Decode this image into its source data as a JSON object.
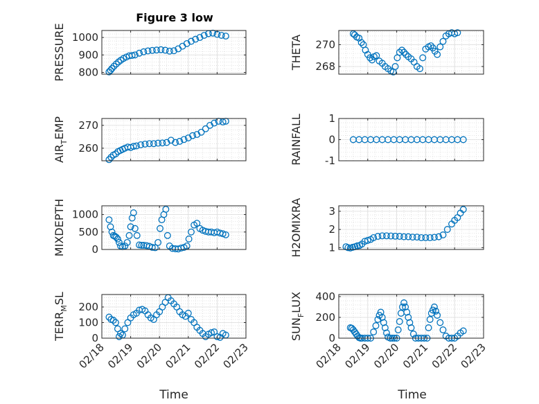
{
  "figure": {
    "title": "Figure 3 low",
    "marker_color": "#0072BD"
  },
  "chart_data": [
    {
      "type": "scatter",
      "ylabel": "PRESSURE",
      "title": "Figure 3 low",
      "xlim": [
        0,
        5
      ],
      "ylim": [
        790,
        1040
      ],
      "yticks": [
        800,
        900,
        1000
      ],
      "grid": true,
      "x": [
        0.25,
        0.3,
        0.35,
        0.42,
        0.5,
        0.58,
        0.66,
        0.75,
        0.85,
        0.95,
        1.05,
        1.15,
        1.3,
        1.45,
        1.6,
        1.75,
        1.9,
        2.05,
        2.2,
        2.35,
        2.5,
        2.65,
        2.8,
        2.95,
        3.1,
        3.25,
        3.4,
        3.55,
        3.7,
        3.85,
        4.0,
        4.15,
        4.3
      ],
      "y": [
        803,
        812,
        822,
        835,
        848,
        860,
        870,
        880,
        888,
        895,
        897,
        900,
        910,
        918,
        923,
        926,
        928,
        930,
        927,
        922,
        924,
        935,
        950,
        965,
        978,
        990,
        1000,
        1012,
        1022,
        1025,
        1018,
        1012,
        1008
      ]
    },
    {
      "type": "scatter",
      "ylabel": "THETA",
      "xlim": [
        0,
        5
      ],
      "ylim": [
        267.3,
        271.3
      ],
      "yticks": [
        268,
        270
      ],
      "grid": true,
      "x": [
        0.5,
        0.55,
        0.62,
        0.7,
        0.78,
        0.85,
        0.92,
        1.0,
        1.08,
        1.15,
        1.22,
        1.3,
        1.4,
        1.5,
        1.6,
        1.7,
        1.8,
        1.88,
        1.95,
        2.02,
        2.1,
        2.18,
        2.25,
        2.32,
        2.4,
        2.5,
        2.6,
        2.7,
        2.8,
        2.9,
        3.0,
        3.1,
        3.18,
        3.25,
        3.32,
        3.4,
        3.5,
        3.6,
        3.7,
        3.8,
        3.9,
        4.0,
        4.1
      ],
      "y": [
        271.0,
        270.9,
        270.7,
        270.6,
        270.2,
        270.0,
        269.5,
        269.1,
        268.8,
        268.6,
        268.9,
        269.0,
        268.5,
        268.3,
        268.0,
        267.8,
        267.6,
        267.5,
        268.0,
        268.8,
        269.3,
        269.5,
        269.3,
        269.1,
        268.9,
        268.7,
        268.4,
        268.0,
        267.8,
        268.8,
        269.6,
        269.8,
        269.9,
        269.7,
        269.4,
        269.1,
        269.8,
        270.3,
        270.8,
        271.0,
        271.1,
        271.0,
        271.1
      ]
    },
    {
      "type": "scatter",
      "ylabel": "AIR_TEMP",
      "xlim": [
        0,
        5
      ],
      "ylim": [
        254.5,
        273
      ],
      "yticks": [
        260,
        270
      ],
      "grid": true,
      "x": [
        0.25,
        0.32,
        0.4,
        0.48,
        0.56,
        0.64,
        0.72,
        0.8,
        0.9,
        1.0,
        1.1,
        1.2,
        1.35,
        1.5,
        1.65,
        1.8,
        1.95,
        2.1,
        2.25,
        2.4,
        2.55,
        2.7,
        2.85,
        3.0,
        3.15,
        3.3,
        3.45,
        3.6,
        3.75,
        3.9,
        4.05,
        4.2,
        4.3
      ],
      "y": [
        255,
        256,
        257,
        257.5,
        258.5,
        259,
        259.5,
        260,
        260.5,
        260.3,
        260.8,
        261,
        261.5,
        261.8,
        262,
        262,
        262.2,
        262.3,
        262.5,
        263.5,
        262.5,
        263,
        263.8,
        264.5,
        265.5,
        266,
        267,
        268.5,
        270,
        271,
        271.8,
        271.5,
        271.8
      ]
    },
    {
      "type": "scatter",
      "ylabel": "RAINFALL",
      "xlim": [
        0,
        5
      ],
      "ylim": [
        -1,
        1
      ],
      "yticks": [
        -1,
        0,
        1
      ],
      "grid": true,
      "x": [
        0.5,
        0.7,
        0.9,
        1.1,
        1.3,
        1.5,
        1.7,
        1.9,
        2.1,
        2.3,
        2.5,
        2.7,
        2.9,
        3.1,
        3.3,
        3.5,
        3.7,
        3.9,
        4.1,
        4.3
      ],
      "y": [
        0,
        0,
        0,
        0,
        0,
        0,
        0,
        0,
        0,
        0,
        0,
        0,
        0,
        0,
        0,
        0,
        0,
        0,
        0,
        0
      ]
    },
    {
      "type": "scatter",
      "ylabel": "MIXDEPTH",
      "xlim": [
        0,
        5
      ],
      "ylim": [
        0,
        1250
      ],
      "yticks": [
        0,
        500,
        1000
      ],
      "grid": true,
      "x": [
        0.25,
        0.3,
        0.35,
        0.4,
        0.45,
        0.5,
        0.55,
        0.6,
        0.65,
        0.72,
        0.8,
        0.88,
        0.95,
        1.0,
        1.05,
        1.1,
        1.15,
        1.22,
        1.3,
        1.38,
        1.45,
        1.55,
        1.65,
        1.75,
        1.85,
        1.95,
        2.02,
        2.08,
        2.15,
        2.22,
        2.28,
        2.35,
        2.45,
        2.55,
        2.65,
        2.75,
        2.85,
        2.95,
        3.02,
        3.1,
        3.2,
        3.3,
        3.4,
        3.5,
        3.6,
        3.7,
        3.8,
        3.9,
        4.0,
        4.1,
        4.2,
        4.3
      ],
      "y": [
        850,
        650,
        500,
        400,
        380,
        350,
        300,
        200,
        100,
        80,
        100,
        200,
        400,
        650,
        900,
        1050,
        600,
        400,
        130,
        120,
        120,
        110,
        90,
        60,
        50,
        200,
        600,
        850,
        1000,
        1150,
        400,
        100,
        30,
        20,
        15,
        40,
        60,
        100,
        300,
        500,
        700,
        750,
        600,
        550,
        520,
        500,
        500,
        480,
        500,
        470,
        450,
        420
      ]
    },
    {
      "type": "scatter",
      "ylabel": "H2OMIXRA",
      "xlim": [
        0,
        5
      ],
      "ylim": [
        0.9,
        3.3
      ],
      "yticks": [
        1,
        2,
        3
      ],
      "grid": true,
      "x": [
        0.25,
        0.32,
        0.4,
        0.48,
        0.56,
        0.64,
        0.72,
        0.8,
        0.9,
        1.0,
        1.1,
        1.2,
        1.35,
        1.5,
        1.65,
        1.8,
        1.95,
        2.1,
        2.25,
        2.4,
        2.55,
        2.7,
        2.85,
        3.0,
        3.15,
        3.3,
        3.45,
        3.6,
        3.75,
        3.9,
        4.0,
        4.1,
        4.2,
        4.3
      ],
      "y": [
        1.05,
        1.0,
        0.98,
        1.02,
        1.05,
        1.1,
        1.12,
        1.2,
        1.35,
        1.4,
        1.45,
        1.55,
        1.62,
        1.65,
        1.65,
        1.64,
        1.63,
        1.62,
        1.6,
        1.6,
        1.58,
        1.58,
        1.55,
        1.55,
        1.55,
        1.57,
        1.6,
        1.7,
        2.0,
        2.3,
        2.5,
        2.65,
        2.9,
        3.1
      ]
    },
    {
      "type": "scatter",
      "ylabel": "TERR_MSL",
      "xlim": [
        0,
        5
      ],
      "ylim": [
        0,
        280
      ],
      "yticks": [
        0,
        100,
        200
      ],
      "grid": true,
      "x": [
        0.25,
        0.32,
        0.4,
        0.48,
        0.55,
        0.6,
        0.65,
        0.72,
        0.8,
        0.9,
        1.0,
        1.1,
        1.2,
        1.3,
        1.4,
        1.5,
        1.6,
        1.7,
        1.8,
        1.9,
        2.0,
        2.1,
        2.2,
        2.3,
        2.4,
        2.5,
        2.6,
        2.7,
        2.8,
        2.9,
        3.0,
        3.1,
        3.2,
        3.3,
        3.4,
        3.5,
        3.6,
        3.7,
        3.8,
        3.9,
        4.0,
        4.1,
        4.2,
        4.3
      ],
      "y": [
        135,
        120,
        115,
        100,
        60,
        10,
        30,
        20,
        60,
        100,
        130,
        150,
        160,
        180,
        185,
        175,
        150,
        130,
        120,
        150,
        170,
        200,
        230,
        260,
        240,
        220,
        200,
        170,
        150,
        140,
        160,
        120,
        100,
        70,
        50,
        30,
        10,
        25,
        35,
        40,
        10,
        5,
        30,
        20
      ]
    },
    {
      "type": "scatter",
      "ylabel": "SUN_FLUX",
      "xlim": [
        0,
        5
      ],
      "ylim": [
        0,
        420
      ],
      "yticks": [
        0,
        200,
        400
      ],
      "grid": true,
      "x": [
        0.4,
        0.45,
        0.5,
        0.55,
        0.6,
        0.65,
        0.7,
        0.75,
        0.8,
        0.9,
        1.0,
        1.1,
        1.2,
        1.28,
        1.35,
        1.4,
        1.45,
        1.5,
        1.55,
        1.6,
        1.65,
        1.7,
        1.78,
        1.85,
        1.92,
        2.0,
        2.05,
        2.1,
        2.15,
        2.2,
        2.25,
        2.3,
        2.35,
        2.4,
        2.45,
        2.5,
        2.58,
        2.65,
        2.75,
        2.85,
        2.95,
        3.05,
        3.1,
        3.15,
        3.2,
        3.25,
        3.3,
        3.35,
        3.4,
        3.5,
        3.6,
        3.7,
        3.8,
        3.9,
        4.0,
        4.1,
        4.2,
        4.3
      ],
      "y": [
        100,
        95,
        80,
        60,
        40,
        20,
        5,
        0,
        0,
        0,
        0,
        0,
        60,
        120,
        180,
        220,
        250,
        200,
        150,
        100,
        50,
        10,
        0,
        0,
        0,
        0,
        80,
        160,
        240,
        300,
        340,
        300,
        250,
        200,
        150,
        100,
        40,
        0,
        0,
        0,
        0,
        0,
        100,
        180,
        240,
        270,
        300,
        260,
        220,
        150,
        80,
        20,
        0,
        0,
        0,
        20,
        50,
        70
      ]
    }
  ],
  "x_axis": {
    "ticks": [
      "02/18",
      "02/19",
      "02/20",
      "02/21",
      "02/22",
      "02/23"
    ],
    "label": "Time"
  }
}
